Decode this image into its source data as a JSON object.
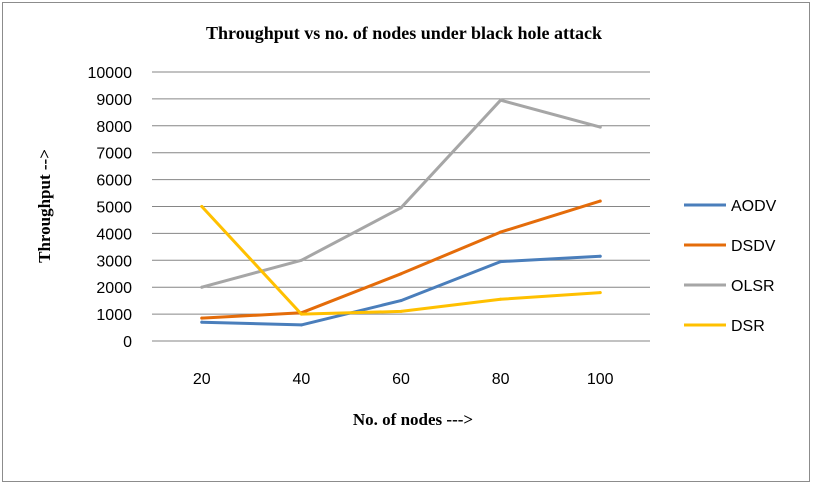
{
  "chart_data": {
    "type": "line",
    "title": "Throughput vs no. of nodes under black hole attack",
    "xlabel": "No. of nodes --->",
    "ylabel": "Throughput -->",
    "categories": [
      "20",
      "40",
      "60",
      "80",
      "100"
    ],
    "ylim": [
      0,
      10000
    ],
    "ytick_step": 1000,
    "yticks": [
      "0",
      "1000",
      "2000",
      "3000",
      "4000",
      "5000",
      "6000",
      "7000",
      "8000",
      "9000",
      "10000"
    ],
    "grid": true,
    "legend_position": "right",
    "series": [
      {
        "name": "AODV",
        "color": "#4a7ebb",
        "values": [
          700,
          600,
          1500,
          2950,
          3150
        ]
      },
      {
        "name": "DSDV",
        "color": "#e46c0a",
        "values": [
          850,
          1050,
          2500,
          4050,
          5200
        ]
      },
      {
        "name": "OLSR",
        "color": "#a6a6a6",
        "values": [
          2000,
          3000,
          4950,
          8950,
          7950
        ]
      },
      {
        "name": "DSR",
        "color": "#ffc000",
        "values": [
          5000,
          1000,
          1100,
          1550,
          1800
        ]
      }
    ]
  }
}
